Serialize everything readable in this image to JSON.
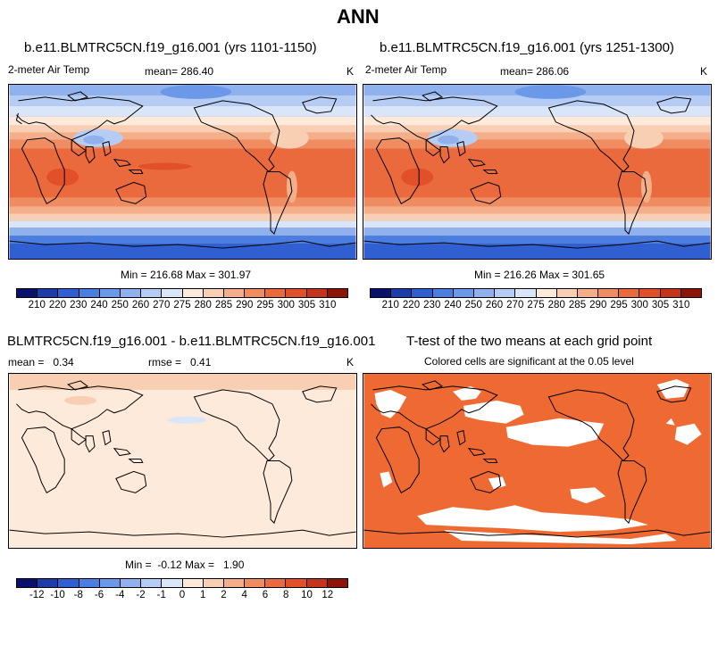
{
  "figure": {
    "title": "ANN"
  },
  "panels": [
    {
      "case_title": "b.e11.BLMTRC5CN.f19_g16.001 (yrs 1101-1150)",
      "variable": "2-meter Air Temp",
      "mean_text": "mean= 286.40",
      "units": "K",
      "minmax_text": "Min = 216.68 Max = 301.97"
    },
    {
      "case_title": "b.e11.BLMTRC5CN.f19_g16.001 (yrs 1251-1300)",
      "variable": "2-meter Air Temp",
      "mean_text": "mean= 286.06",
      "units": "K",
      "minmax_text": "Min = 216.26 Max = 301.65"
    },
    {
      "case_title": "BLMTRC5CN.f19_g16.001 - b.e11.BLMTRC5CN.f19_g16.001",
      "mean_text": "mean =   0.34",
      "rmse_text": "rmse =   0.41",
      "units": "K",
      "minmax_text": "Min =  -0.12 Max =   1.90"
    },
    {
      "case_title": "T-test of the two means at each grid point",
      "subtitle": "Colored cells are significant at the 0.05 level"
    }
  ],
  "colorbars": {
    "temperature": {
      "labels": [
        "210",
        "220",
        "230",
        "240",
        "250",
        "260",
        "270",
        "275",
        "280",
        "285",
        "290",
        "295",
        "300",
        "305",
        "310"
      ],
      "colors": [
        "#08116b",
        "#1c3ca8",
        "#2f5fd0",
        "#4a7ee0",
        "#6b98e8",
        "#8fb2ef",
        "#b5cdf5",
        "#d9e6fa",
        "#fdeadb",
        "#f8cfb2",
        "#f4af8a",
        "#ef8c61",
        "#ea6a3e",
        "#e2502a",
        "#c4341c",
        "#8e1408"
      ]
    },
    "difference": {
      "labels": [
        "-12",
        "-10",
        "-8",
        "-6",
        "-4",
        "-2",
        "-1",
        "0",
        "1",
        "2",
        "4",
        "6",
        "8",
        "10",
        "12"
      ],
      "colors": [
        "#08116b",
        "#1c3ca8",
        "#2f5fd0",
        "#4a7ee0",
        "#6b98e8",
        "#8fb2ef",
        "#b5cdf5",
        "#d9e6fa",
        "#fdeadb",
        "#f8cfb2",
        "#f4af8a",
        "#ef8c61",
        "#ea6a3e",
        "#e2502a",
        "#c4341c",
        "#8e1408"
      ]
    }
  },
  "ttest_color": "#ef6a32"
}
